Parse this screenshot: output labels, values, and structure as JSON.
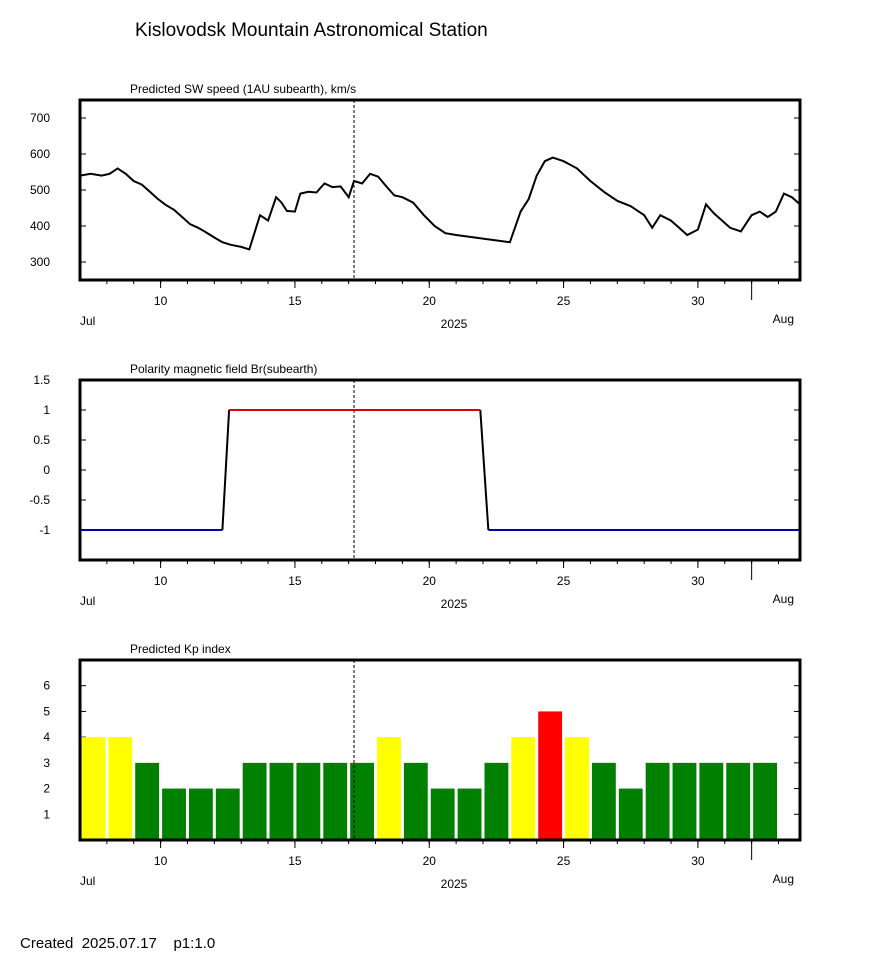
{
  "header": {
    "title": "Kislovodsk Mountain Astronomical Station"
  },
  "footer": {
    "created_label": "Created",
    "created_date": "2025.07.17",
    "page_label": "p1:1.0"
  },
  "colors": {
    "line": "#000000",
    "positive": "#dd0000",
    "negative": "#0000aa",
    "kp_low": "#008000",
    "kp_mid": "#ffff00",
    "kp_high": "#ff0000"
  },
  "chart_data": [
    {
      "type": "line",
      "title": "Predicted SW speed (1AU subearth), km/s",
      "xlabel": "2025",
      "x_month_labels": [
        "Jul",
        "Aug"
      ],
      "x_ticks": [
        10,
        15,
        20,
        25,
        30
      ],
      "xlim": [
        7.0,
        33.8
      ],
      "ylim": [
        250,
        750
      ],
      "y_ticks": [
        "700",
        "600",
        "500",
        "400",
        "300"
      ],
      "current_day": 17.2,
      "x": [
        7.0,
        7.4,
        7.8,
        8.1,
        8.4,
        8.7,
        9.0,
        9.3,
        9.6,
        9.9,
        10.2,
        10.5,
        10.8,
        11.1,
        11.4,
        11.7,
        12.0,
        12.3,
        12.6,
        12.8,
        13.0,
        13.3,
        13.7,
        14.0,
        14.3,
        14.5,
        14.7,
        15.0,
        15.2,
        15.5,
        15.8,
        16.1,
        16.4,
        16.7,
        17.0,
        17.2,
        17.5,
        17.8,
        18.1,
        18.4,
        18.7,
        19.0,
        19.4,
        19.8,
        20.2,
        20.6,
        21.0,
        22.0,
        23.0,
        23.4,
        23.7,
        24.0,
        24.3,
        24.6,
        25.0,
        25.5,
        26.0,
        26.5,
        27.0,
        27.5,
        28.0,
        28.3,
        28.6,
        29.0,
        29.3,
        29.6,
        30.0,
        30.3,
        30.6,
        31.2,
        31.6,
        32.0,
        32.3,
        32.6,
        32.9,
        33.2,
        33.5,
        33.8
      ],
      "y": [
        540,
        545,
        540,
        545,
        560,
        545,
        525,
        515,
        495,
        475,
        458,
        445,
        425,
        405,
        395,
        382,
        368,
        355,
        348,
        345,
        342,
        335,
        430,
        415,
        480,
        465,
        442,
        440,
        490,
        495,
        493,
        518,
        508,
        510,
        480,
        525,
        518,
        545,
        537,
        510,
        485,
        480,
        465,
        430,
        400,
        380,
        375,
        365,
        355,
        440,
        475,
        540,
        580,
        590,
        580,
        560,
        525,
        495,
        470,
        455,
        430,
        395,
        430,
        415,
        395,
        375,
        390,
        460,
        435,
        395,
        385,
        430,
        440,
        425,
        440,
        490,
        480,
        460
      ]
    },
    {
      "type": "line",
      "title": "Polarity magnetic field  Br(subearth)",
      "xlabel": "2025",
      "x_month_labels": [
        "Jul",
        "Aug"
      ],
      "x_ticks": [
        10,
        15,
        20,
        25,
        30
      ],
      "xlim": [
        7.0,
        33.8
      ],
      "ylim": [
        -1.5,
        1.5
      ],
      "y_ticks": [
        "1.5",
        "1",
        "0.5",
        "0",
        "-0.5",
        "-1"
      ],
      "current_day": 17.2,
      "x": [
        7.0,
        12.3,
        12.55,
        21.9,
        22.2,
        33.8
      ],
      "y": [
        -1,
        -1,
        1,
        1,
        -1,
        -1
      ]
    },
    {
      "type": "bar",
      "title": "Predicted Kp index",
      "xlabel": "2025",
      "x_month_labels": [
        "Jul",
        "Aug"
      ],
      "x_ticks": [
        10,
        15,
        20,
        25,
        30
      ],
      "xlim": [
        7.0,
        33.8
      ],
      "ylim": [
        0,
        7
      ],
      "y_ticks": [
        "6",
        "5",
        "4",
        "3",
        "2",
        "1"
      ],
      "current_day": 17.2,
      "x": [
        7.5,
        8.5,
        9.5,
        10.5,
        11.5,
        12.5,
        13.5,
        14.5,
        15.5,
        16.5,
        17.5,
        18.5,
        19.5,
        20.5,
        21.5,
        22.5,
        23.5,
        24.5,
        25.5,
        26.5,
        27.5,
        28.5,
        29.5,
        30.5,
        31.5,
        32.5
      ],
      "values": [
        4,
        4,
        3,
        2,
        2,
        2,
        3,
        3,
        3,
        3,
        3,
        4,
        3,
        2,
        2,
        3,
        4,
        5,
        4,
        3,
        2,
        3,
        3,
        3,
        3,
        3
      ]
    }
  ]
}
